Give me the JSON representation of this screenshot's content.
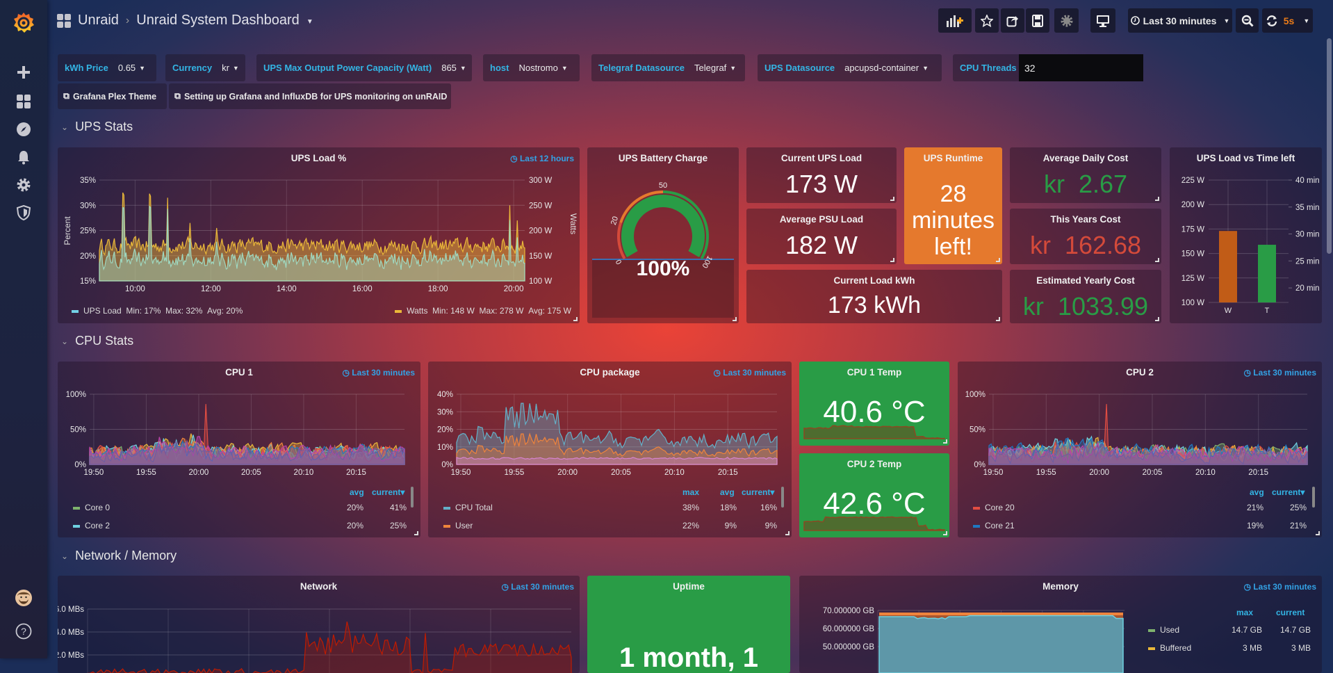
{
  "topbar": {
    "folder": "Unraid",
    "title": "Unraid System Dashboard",
    "time_range": "Last 30 minutes",
    "refresh": "5s"
  },
  "variables": [
    {
      "label": "kWh Price",
      "value": "0.65"
    },
    {
      "label": "Currency",
      "value": "kr"
    },
    {
      "label": "UPS Max Output Power Capacity (Watt)",
      "value": "865"
    },
    {
      "label": "host",
      "value": "Nostromo"
    },
    {
      "label": "Telegraf Datasource",
      "value": "Telegraf"
    },
    {
      "label": "UPS Datasource",
      "value": "apcupsd-container"
    },
    {
      "label": "CPU Threads",
      "value": "32"
    }
  ],
  "links": [
    "Grafana Plex Theme",
    "Setting up Grafana and InfluxDB for UPS monitoring on unRAID"
  ],
  "rows": [
    "UPS Stats",
    "CPU Stats",
    "Network / Memory"
  ],
  "colors": {
    "green": "#299c46",
    "orange": "#e5792d",
    "red": "#e0443a",
    "blue_link": "#33a2e5"
  },
  "ups_load": {
    "title": "UPS Load %",
    "range": "Last 12 hours",
    "y_left_label": "Percent",
    "y_right_label": "Watts",
    "y_left_ticks": [
      "35%",
      "30%",
      "25%",
      "20%",
      "15%"
    ],
    "y_right_ticks": [
      "300 W",
      "250 W",
      "200 W",
      "150 W",
      "100 W"
    ],
    "x_ticks": [
      "10:00",
      "12:00",
      "14:00",
      "16:00",
      "18:00",
      "20:00"
    ],
    "legend": [
      {
        "name": "UPS Load",
        "color": "#73d1e6",
        "min": "Min: 17%",
        "max": "Max: 32%",
        "avg": "Avg: 20%"
      },
      {
        "name": "Watts",
        "color": "#eab839",
        "min": "Min: 148 W",
        "max": "Max: 278 W",
        "avg": "Avg: 175 W"
      }
    ]
  },
  "battery": {
    "title": "UPS Battery Charge",
    "value": "100%",
    "value_pct": 100,
    "gauge_labels": [
      "0",
      "20",
      "50",
      "100"
    ],
    "thresholds": [
      20,
      50
    ]
  },
  "current_load": {
    "title": "Current UPS Load",
    "value": "173 W"
  },
  "avg_psu": {
    "title": "Average PSU Load",
    "value": "182 W"
  },
  "runtime": {
    "title": "UPS Runtime",
    "value_lines": [
      "28",
      "minutes",
      "left!"
    ]
  },
  "load_kwh": {
    "title": "Current Load kWh",
    "value": "173 kWh"
  },
  "daily_cost": {
    "title": "Average Daily Cost",
    "prefix": "kr",
    "value": "2.67"
  },
  "year_cost": {
    "title": "This Years Cost",
    "prefix": "kr",
    "value": "162.68"
  },
  "est_cost": {
    "title": "Estimated Yearly Cost",
    "prefix": "kr",
    "value": "1033.99"
  },
  "chart_data": {
    "type": "bar",
    "title": "UPS Load vs Time left",
    "categories": [
      "W",
      "T"
    ],
    "series": [
      {
        "values": [
          173,
          null
        ],
        "axis": "left",
        "color": "#c15c17"
      },
      {
        "values": [
          null,
          28
        ],
        "axis": "right",
        "color": "#299c46"
      }
    ],
    "ylim_left": [
      100,
      225
    ],
    "y_left_ticks": [
      "225 W",
      "200 W",
      "175 W",
      "150 W",
      "125 W",
      "100 W"
    ],
    "y_right_ticks": [
      "40 min",
      "35 min",
      "30 min",
      "25 min",
      "20 min"
    ],
    "grid": true
  },
  "cpu1": {
    "title": "CPU 1",
    "range": "Last 30 minutes",
    "y_ticks": [
      "100%",
      "50%",
      "0%"
    ],
    "x_ticks": [
      "19:50",
      "19:55",
      "20:00",
      "20:05",
      "20:10",
      "20:15"
    ],
    "legend_headers": [
      "avg",
      "current▾"
    ],
    "legend": [
      {
        "name": "Core 0",
        "color": "#7eb26d",
        "avg": "20%",
        "current": "41%"
      },
      {
        "name": "Core 2",
        "color": "#6ed0e0",
        "avg": "20%",
        "current": "25%"
      }
    ]
  },
  "cpu_pkg": {
    "title": "CPU package",
    "range": "Last 30 minutes",
    "y_ticks": [
      "40%",
      "30%",
      "20%",
      "10%",
      "0%"
    ],
    "x_ticks": [
      "19:50",
      "19:55",
      "20:00",
      "20:05",
      "20:10",
      "20:15"
    ],
    "legend_headers": [
      "max",
      "avg",
      "current▾"
    ],
    "legend": [
      {
        "name": "CPU Total",
        "color": "#64b0c8",
        "max": "38%",
        "avg": "18%",
        "current": "16%"
      },
      {
        "name": "User",
        "color": "#ef843c",
        "max": "22%",
        "avg": "9%",
        "current": "9%"
      }
    ]
  },
  "cpu1_temp": {
    "title": "CPU 1 Temp",
    "value": "40.6 °C"
  },
  "cpu2_temp": {
    "title": "CPU 2 Temp",
    "value": "42.6 °C"
  },
  "cpu2": {
    "title": "CPU 2",
    "range": "Last 30 minutes",
    "y_ticks": [
      "100%",
      "50%",
      "0%"
    ],
    "x_ticks": [
      "19:50",
      "19:55",
      "20:00",
      "20:05",
      "20:10",
      "20:15"
    ],
    "legend_headers": [
      "avg",
      "current▾"
    ],
    "legend": [
      {
        "name": "Core 20",
        "color": "#e24d42",
        "avg": "21%",
        "current": "25%"
      },
      {
        "name": "Core 21",
        "color": "#1f78c1",
        "avg": "19%",
        "current": "21%"
      }
    ]
  },
  "network": {
    "title": "Network",
    "range": "Last 30 minutes",
    "y_ticks": [
      "6.0 MBs",
      "4.0 MBs",
      "2.0 MBs"
    ]
  },
  "uptime": {
    "title": "Uptime",
    "value": "1 month, 1"
  },
  "memory": {
    "title": "Memory",
    "range": "Last 30 minutes",
    "y_ticks": [
      "70.000000 GB",
      "60.000000 GB",
      "50.000000 GB"
    ],
    "legend_headers": [
      "max",
      "current"
    ],
    "legend": [
      {
        "name": "Used",
        "color": "#7eb26d",
        "max": "14.7 GB",
        "current": "14.7 GB"
      },
      {
        "name": "Buffered",
        "color": "#eab839",
        "max": "3 MB",
        "current": "3 MB"
      }
    ]
  }
}
